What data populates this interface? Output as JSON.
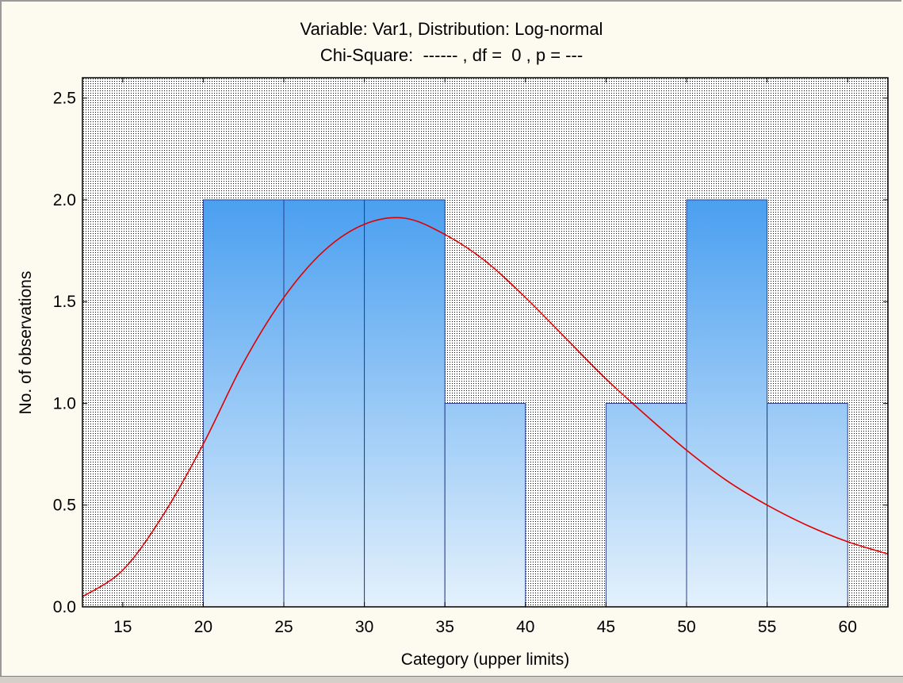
{
  "chart_data": {
    "type": "bar",
    "title": "Variable: Var1, Distribution: Log-normal",
    "subtitle": "Chi-Square:  ------ , df =  0 , p = ---",
    "xlabel": "Category (upper limits)",
    "ylabel": "No. of observations",
    "xlim": [
      12.5,
      62.5
    ],
    "ylim": [
      0,
      2.6
    ],
    "x_ticks": [
      15,
      20,
      25,
      30,
      35,
      40,
      45,
      50,
      55,
      60
    ],
    "y_ticks": [
      0.0,
      0.5,
      1.0,
      1.5,
      2.0,
      2.5
    ],
    "y_tick_labels": [
      "0.0",
      "0.5",
      "1.0",
      "1.5",
      "2.0",
      "2.5"
    ],
    "bins": [
      {
        "lower": 20,
        "upper": 25,
        "count": 2
      },
      {
        "lower": 25,
        "upper": 30,
        "count": 2
      },
      {
        "lower": 30,
        "upper": 35,
        "count": 2
      },
      {
        "lower": 35,
        "upper": 40,
        "count": 1
      },
      {
        "lower": 40,
        "upper": 45,
        "count": 0
      },
      {
        "lower": 45,
        "upper": 50,
        "count": 1
      },
      {
        "lower": 50,
        "upper": 55,
        "count": 2
      },
      {
        "lower": 55,
        "upper": 60,
        "count": 1
      }
    ],
    "fit_curve": {
      "name": "Log-normal",
      "x": [
        12.5,
        15,
        17.5,
        20,
        22.5,
        25,
        27.5,
        30,
        32.5,
        35,
        37.5,
        40,
        42.5,
        45,
        47.5,
        50,
        52.5,
        55,
        57.5,
        60,
        62.5
      ],
      "y": [
        0.05,
        0.18,
        0.45,
        0.8,
        1.2,
        1.52,
        1.75,
        1.88,
        1.91,
        1.83,
        1.7,
        1.52,
        1.32,
        1.12,
        0.94,
        0.77,
        0.62,
        0.5,
        0.4,
        0.32,
        0.26
      ]
    },
    "grid": "dotted-background",
    "legend": "none",
    "colors": {
      "bar_top": "#4a9ff0",
      "bar_bottom": "#e4f1fc",
      "bar_edge": "#2a3f8f",
      "curve": "#e00000",
      "plot_dots": "#000000",
      "background": "#fdfaf0"
    }
  }
}
